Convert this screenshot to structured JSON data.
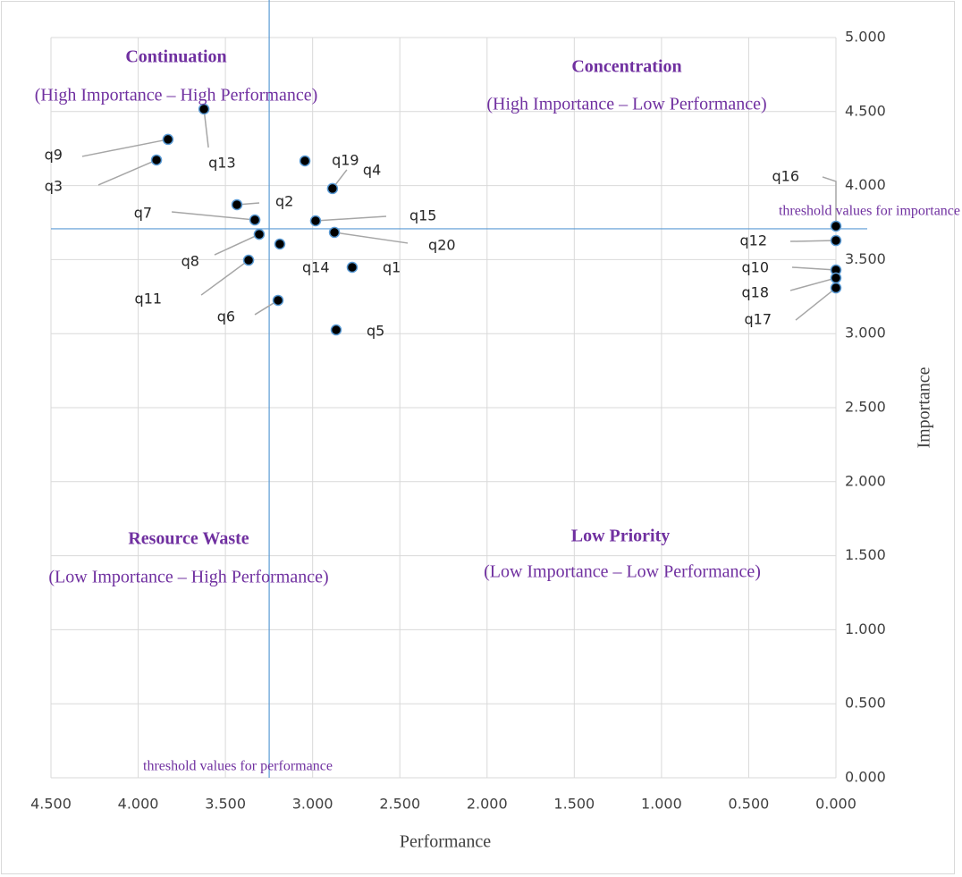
{
  "chart_data": {
    "type": "scatter",
    "x_label": "Performance",
    "y_label": "Importance",
    "xlim": [
      4.5,
      0
    ],
    "ylim": [
      0,
      5
    ],
    "xticks": [
      {
        "value": 4.5,
        "label": "4.500"
      },
      {
        "value": 4,
        "label": "4.000"
      },
      {
        "value": 3.5,
        "label": "3.500"
      },
      {
        "value": 3,
        "label": "3.000"
      },
      {
        "value": 2.5,
        "label": "2.500"
      },
      {
        "value": 2,
        "label": "2.000"
      },
      {
        "value": 1.5,
        "label": "1.500"
      },
      {
        "value": 1,
        "label": "1.000"
      },
      {
        "value": 0.5,
        "label": "0.500"
      },
      {
        "value": 0,
        "label": "0.000"
      }
    ],
    "yticks": [
      {
        "value": 0,
        "label": "0.000"
      },
      {
        "value": 0.5,
        "label": "0.500"
      },
      {
        "value": 1,
        "label": "1.000"
      },
      {
        "value": 1.5,
        "label": "1.500"
      },
      {
        "value": 2,
        "label": "2.000"
      },
      {
        "value": 2.5,
        "label": "2.500"
      },
      {
        "value": 3,
        "label": "3.000"
      },
      {
        "value": 3.5,
        "label": "3.500"
      },
      {
        "value": 4,
        "label": "4.000"
      },
      {
        "value": 4.5,
        "label": "4.500"
      },
      {
        "value": 5,
        "label": "5.000"
      }
    ],
    "grid": true,
    "series": [
      {
        "color": "#000000",
        "edge_color": "#5b9bd5",
        "labels": [
          "q1",
          "q2",
          "q3",
          "q4",
          "q5",
          "q6",
          "q7",
          "q8",
          "q9",
          "q10",
          "q11",
          "q12",
          "q13",
          "q14",
          "q15",
          "q16",
          "q17",
          "q18",
          "q19",
          "q20"
        ],
        "x": [
          2.773,
          3.434,
          3.895,
          2.886,
          2.865,
          3.198,
          3.331,
          3.306,
          3.829,
          0,
          3.367,
          0,
          3.623,
          3.188,
          2.983,
          0,
          0,
          0,
          3.044,
          2.875
        ],
        "values": [
          3.448,
          3.871,
          4.173,
          3.98,
          3.025,
          3.225,
          3.768,
          3.671,
          4.312,
          3.43,
          3.496,
          3.629,
          4.517,
          3.605,
          3.762,
          3.726,
          3.309,
          3.376,
          4.167,
          3.684
        ]
      }
    ],
    "thresholds": {
      "performance": {
        "value": 3.249,
        "label": "threshold values for performance"
      },
      "importance": {
        "value": 3.708,
        "label": "threshold values for importance"
      },
      "color": "#5b9bd5"
    },
    "annotations": [
      {
        "title": "Continuation",
        "text": "(High Importance – High Performance)"
      },
      {
        "title": "Concentration",
        "text": "(High Importance – Low Performance)"
      },
      {
        "title": "Resource Waste",
        "text": "(Low Importance – High Performance)"
      },
      {
        "title": "Low Priority",
        "text": "(Low Importance – Low Performance)"
      }
    ]
  }
}
